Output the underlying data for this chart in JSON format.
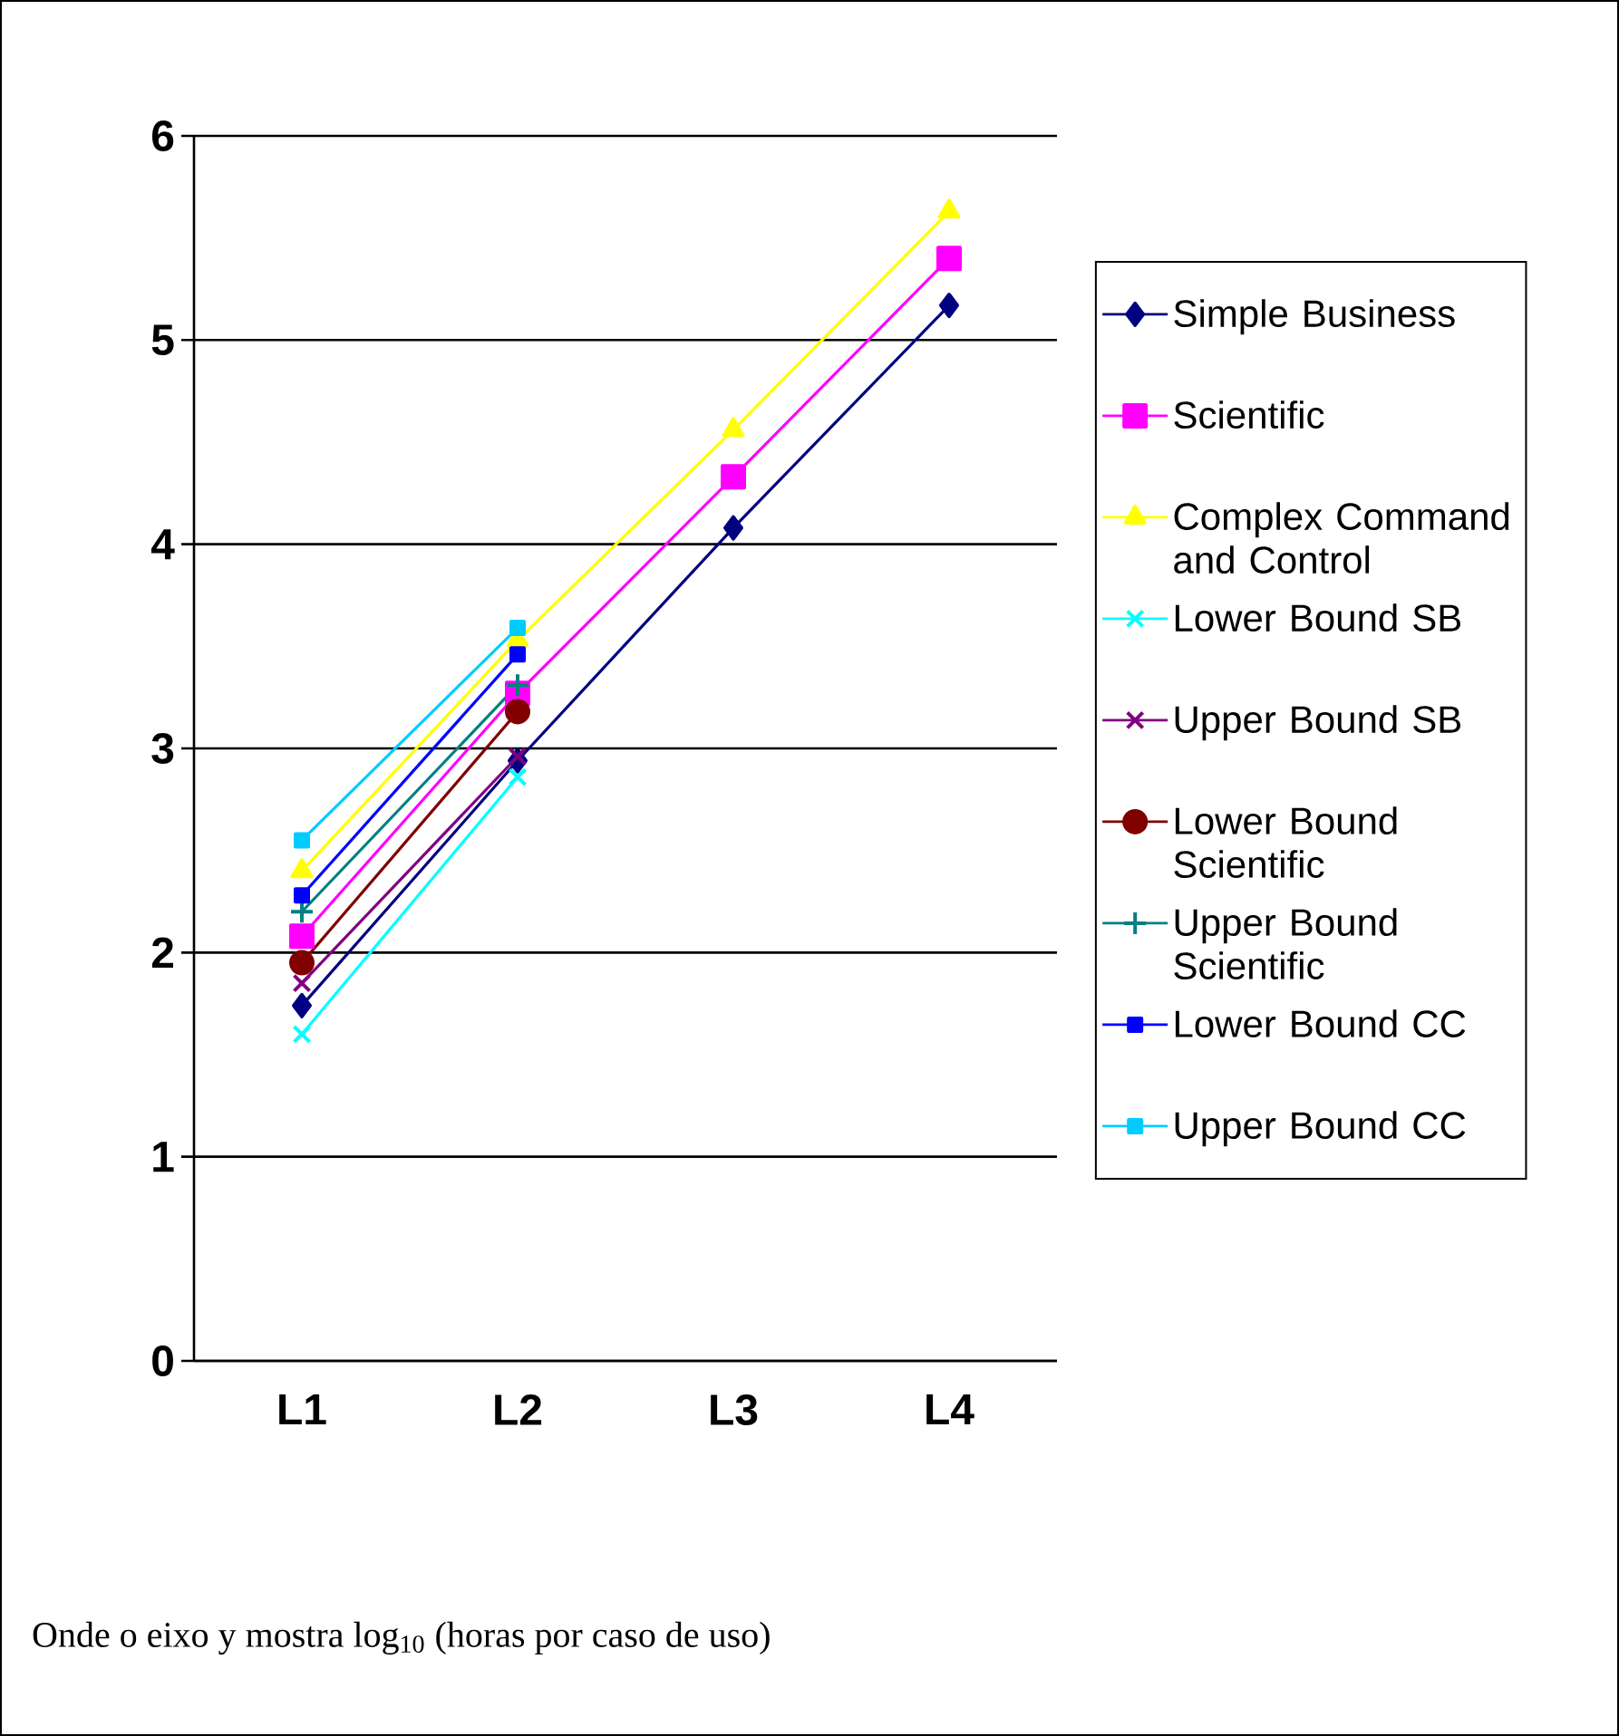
{
  "chart_data": {
    "type": "line",
    "categories": [
      "L1",
      "L2",
      "L3",
      "L4"
    ],
    "ylim": [
      0,
      6
    ],
    "yticks": [
      0,
      1,
      2,
      3,
      4,
      5,
      6
    ],
    "grid": "y",
    "legend": "right",
    "annotations": [
      "Onde o eixo y mostra log$_{10}$ (horas por caso de uso)"
    ],
    "series": [
      {
        "name": "Simple Business",
        "color": "#000080",
        "marker": "diamond",
        "values": [
          1.74,
          2.94,
          4.08,
          5.17
        ]
      },
      {
        "name": "Scientific",
        "color": "#ff00ff",
        "marker": "square",
        "values": [
          2.08,
          3.27,
          4.33,
          5.4
        ]
      },
      {
        "name": "Complex Command and Control",
        "color": "#ffff00",
        "marker": "triangle",
        "values": [
          2.4,
          3.53,
          4.56,
          5.63
        ]
      },
      {
        "name": "Lower Bound SB",
        "color": "#00ffff",
        "marker": "cross",
        "values": [
          1.6,
          2.86,
          null,
          null
        ]
      },
      {
        "name": "Upper Bound SB",
        "color": "#800080",
        "marker": "cross",
        "values": [
          1.85,
          2.96,
          null,
          null
        ]
      },
      {
        "name": "Lower Bound Scientific",
        "color": "#800000",
        "marker": "circle",
        "values": [
          1.95,
          3.18,
          null,
          null
        ]
      },
      {
        "name": "Upper Bound Scientific",
        "color": "#008080",
        "marker": "plus",
        "values": [
          2.2,
          3.31,
          null,
          null
        ]
      },
      {
        "name": "Lower Bound CC",
        "color": "#0000ff",
        "marker": "square",
        "values": [
          2.28,
          3.46,
          null,
          null
        ]
      },
      {
        "name": "Upper Bound CC",
        "color": "#00ccff",
        "marker": "square",
        "values": [
          2.55,
          3.59,
          null,
          null
        ]
      }
    ]
  }
}
